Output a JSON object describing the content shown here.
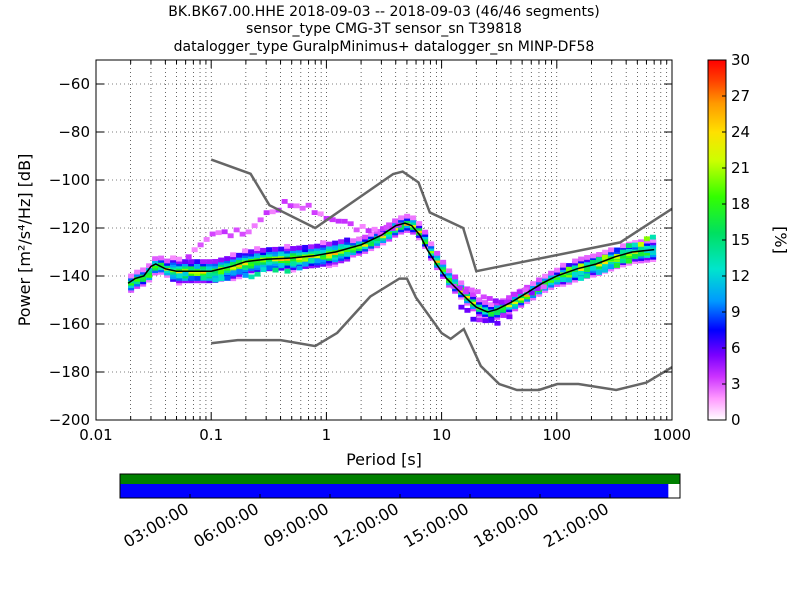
{
  "chart_data": {
    "type": "heatmap",
    "title_lines": [
      "BK.BK67.00.HHE   2018-09-03 -- 2018-09-03  (46/46 segments)",
      "sensor_type CMG-3T sensor_sn T39818",
      "datalogger_type GuralpMinimus+ datalogger_sn MINP-DF58"
    ],
    "xlabel": "Period [s]",
    "ylabel": "Power [m²/s⁴/Hz] [dB]",
    "x_scale": "log",
    "xlim": [
      0.01,
      1000
    ],
    "ylim": [
      -200,
      -50
    ],
    "x_ticks": [
      {
        "v": 0.01,
        "label": "0.01"
      },
      {
        "v": 0.1,
        "label": "0.1"
      },
      {
        "v": 1,
        "label": "1"
      },
      {
        "v": 10,
        "label": "10"
      },
      {
        "v": 100,
        "label": "100"
      },
      {
        "v": 1000,
        "label": "1000"
      }
    ],
    "y_ticks": [
      {
        "v": -60,
        "label": "−60"
      },
      {
        "v": -80,
        "label": "−80"
      },
      {
        "v": -100,
        "label": "−100"
      },
      {
        "v": -120,
        "label": "−120"
      },
      {
        "v": -140,
        "label": "−140"
      },
      {
        "v": -160,
        "label": "−160"
      },
      {
        "v": -180,
        "label": "−180"
      },
      {
        "v": -200,
        "label": "−200"
      }
    ],
    "grid": true,
    "colorbar": {
      "label": "[%]",
      "range": [
        0,
        30
      ],
      "ticks": [
        {
          "v": 0,
          "label": "0"
        },
        {
          "v": 3,
          "label": "3"
        },
        {
          "v": 6,
          "label": "6"
        },
        {
          "v": 9,
          "label": "9"
        },
        {
          "v": 12,
          "label": "12"
        },
        {
          "v": 15,
          "label": "15"
        },
        {
          "v": 18,
          "label": "18"
        },
        {
          "v": 21,
          "label": "21"
        },
        {
          "v": 24,
          "label": "24"
        },
        {
          "v": 27,
          "label": "27"
        },
        {
          "v": 30,
          "label": "30"
        }
      ]
    },
    "noise_models": [
      {
        "name": "NHNM",
        "points": [
          [
            0.1,
            -91.5
          ],
          [
            0.22,
            -97.4
          ],
          [
            0.32,
            -110.5
          ],
          [
            0.8,
            -120
          ],
          [
            3.8,
            -97.5
          ],
          [
            4.6,
            -96.5
          ],
          [
            6.3,
            -101
          ],
          [
            7.9,
            -113.5
          ],
          [
            15.4,
            -120
          ],
          [
            20,
            -138
          ],
          [
            354.8,
            -126
          ],
          [
            1000,
            -112
          ]
        ]
      },
      {
        "name": "NLNM",
        "points": [
          [
            0.1,
            -168
          ],
          [
            0.17,
            -166.7
          ],
          [
            0.4,
            -166.7
          ],
          [
            0.8,
            -169.2
          ],
          [
            1.24,
            -163.7
          ],
          [
            2.4,
            -148.6
          ],
          [
            4.3,
            -141.1
          ],
          [
            5.0,
            -141.1
          ],
          [
            6.0,
            -149
          ],
          [
            10,
            -163.8
          ],
          [
            12,
            -166.2
          ],
          [
            15.6,
            -162.1
          ],
          [
            21.9,
            -177.5
          ],
          [
            31.6,
            -185
          ],
          [
            45,
            -187.5
          ],
          [
            70,
            -187.5
          ],
          [
            101,
            -185
          ],
          [
            154,
            -185
          ],
          [
            328,
            -187.5
          ],
          [
            600,
            -184.4
          ],
          [
            1000,
            -178
          ]
        ]
      }
    ],
    "mode_curve": [
      [
        0.019,
        -143
      ],
      [
        0.022,
        -141
      ],
      [
        0.026,
        -140
      ],
      [
        0.03,
        -136
      ],
      [
        0.033,
        -135
      ],
      [
        0.04,
        -137
      ],
      [
        0.05,
        -138
      ],
      [
        0.07,
        -138
      ],
      [
        0.1,
        -138
      ],
      [
        0.15,
        -136
      ],
      [
        0.2,
        -134
      ],
      [
        0.3,
        -133
      ],
      [
        0.5,
        -132.5
      ],
      [
        0.8,
        -131.5
      ],
      [
        1.2,
        -130
      ],
      [
        2,
        -127
      ],
      [
        3,
        -123
      ],
      [
        4,
        -119
      ],
      [
        4.8,
        -118
      ],
      [
        5.5,
        -119
      ],
      [
        6.5,
        -123
      ],
      [
        7.5,
        -129
      ],
      [
        9,
        -135
      ],
      [
        11,
        -141
      ],
      [
        14,
        -146
      ],
      [
        17,
        -150
      ],
      [
        20,
        -153
      ],
      [
        25,
        -155
      ],
      [
        30,
        -154
      ],
      [
        40,
        -151
      ],
      [
        55,
        -147
      ],
      [
        75,
        -143
      ],
      [
        100,
        -140
      ],
      [
        150,
        -137
      ],
      [
        220,
        -135
      ],
      [
        320,
        -132
      ],
      [
        450,
        -130
      ],
      [
        700,
        -129
      ]
    ],
    "density_bands": [
      {
        "name": "upper_scatter",
        "pct": 3,
        "points": [
          [
            0.06,
            -132
          ],
          [
            0.07,
            -130
          ],
          [
            0.08,
            -125
          ],
          [
            0.1,
            -122
          ],
          [
            0.15,
            -122
          ],
          [
            0.22,
            -120
          ],
          [
            0.3,
            -114
          ],
          [
            0.4,
            -110
          ],
          [
            0.6,
            -111
          ],
          [
            0.8,
            -113
          ],
          [
            1.0,
            -116
          ],
          [
            1.5,
            -119
          ],
          [
            2.0,
            -121
          ],
          [
            3.0,
            -121
          ],
          [
            4.0,
            -118
          ]
        ]
      },
      {
        "name": "lower_scatter",
        "pct": 4,
        "points": [
          [
            12,
            -143
          ],
          [
            15,
            -145
          ],
          [
            20,
            -148
          ],
          [
            25,
            -151
          ],
          [
            32,
            -151
          ],
          [
            40,
            -149
          ],
          [
            55,
            -146
          ],
          [
            75,
            -143
          ]
        ]
      },
      {
        "name": "low_trough",
        "pct": 5,
        "points": [
          [
            14,
            -152
          ],
          [
            17,
            -157
          ],
          [
            20,
            -159
          ],
          [
            25,
            -160
          ],
          [
            30,
            -158
          ],
          [
            40,
            -155
          ]
        ]
      },
      {
        "name": "broad_microseism",
        "pct": 12,
        "points": [
          [
            0.05,
            -140
          ],
          [
            0.08,
            -141
          ],
          [
            0.12,
            -140
          ],
          [
            0.2,
            -139
          ],
          [
            0.3,
            -138
          ],
          [
            0.5,
            -136
          ],
          [
            0.8,
            -134
          ]
        ]
      },
      {
        "name": "long_period_band_high",
        "pct": 18,
        "points": [
          [
            120,
            -138
          ],
          [
            200,
            -135
          ],
          [
            300,
            -132
          ],
          [
            450,
            -127
          ],
          [
            550,
            -125
          ],
          [
            650,
            -124
          ]
        ]
      },
      {
        "name": "long_period_band_low",
        "pct": 14,
        "points": [
          [
            120,
            -141
          ],
          [
            200,
            -138
          ],
          [
            300,
            -135
          ],
          [
            450,
            -132
          ],
          [
            550,
            -131
          ],
          [
            650,
            -130
          ]
        ]
      }
    ],
    "time_axis": {
      "labels": [
        "03:00:00",
        "06:00:00",
        "09:00:00",
        "12:00:00",
        "15:00:00",
        "18:00:00",
        "21:00:00"
      ],
      "hours": [
        3,
        6,
        9,
        12,
        15,
        18,
        21
      ],
      "range_hours": [
        0,
        24
      ],
      "coverage": [
        {
          "name": "data_available",
          "color": "#008000",
          "start_h": 0,
          "end_h": 24
        },
        {
          "name": "data_used",
          "color": "#0000ff",
          "start_h": 0,
          "end_h": 23.5
        }
      ]
    }
  }
}
